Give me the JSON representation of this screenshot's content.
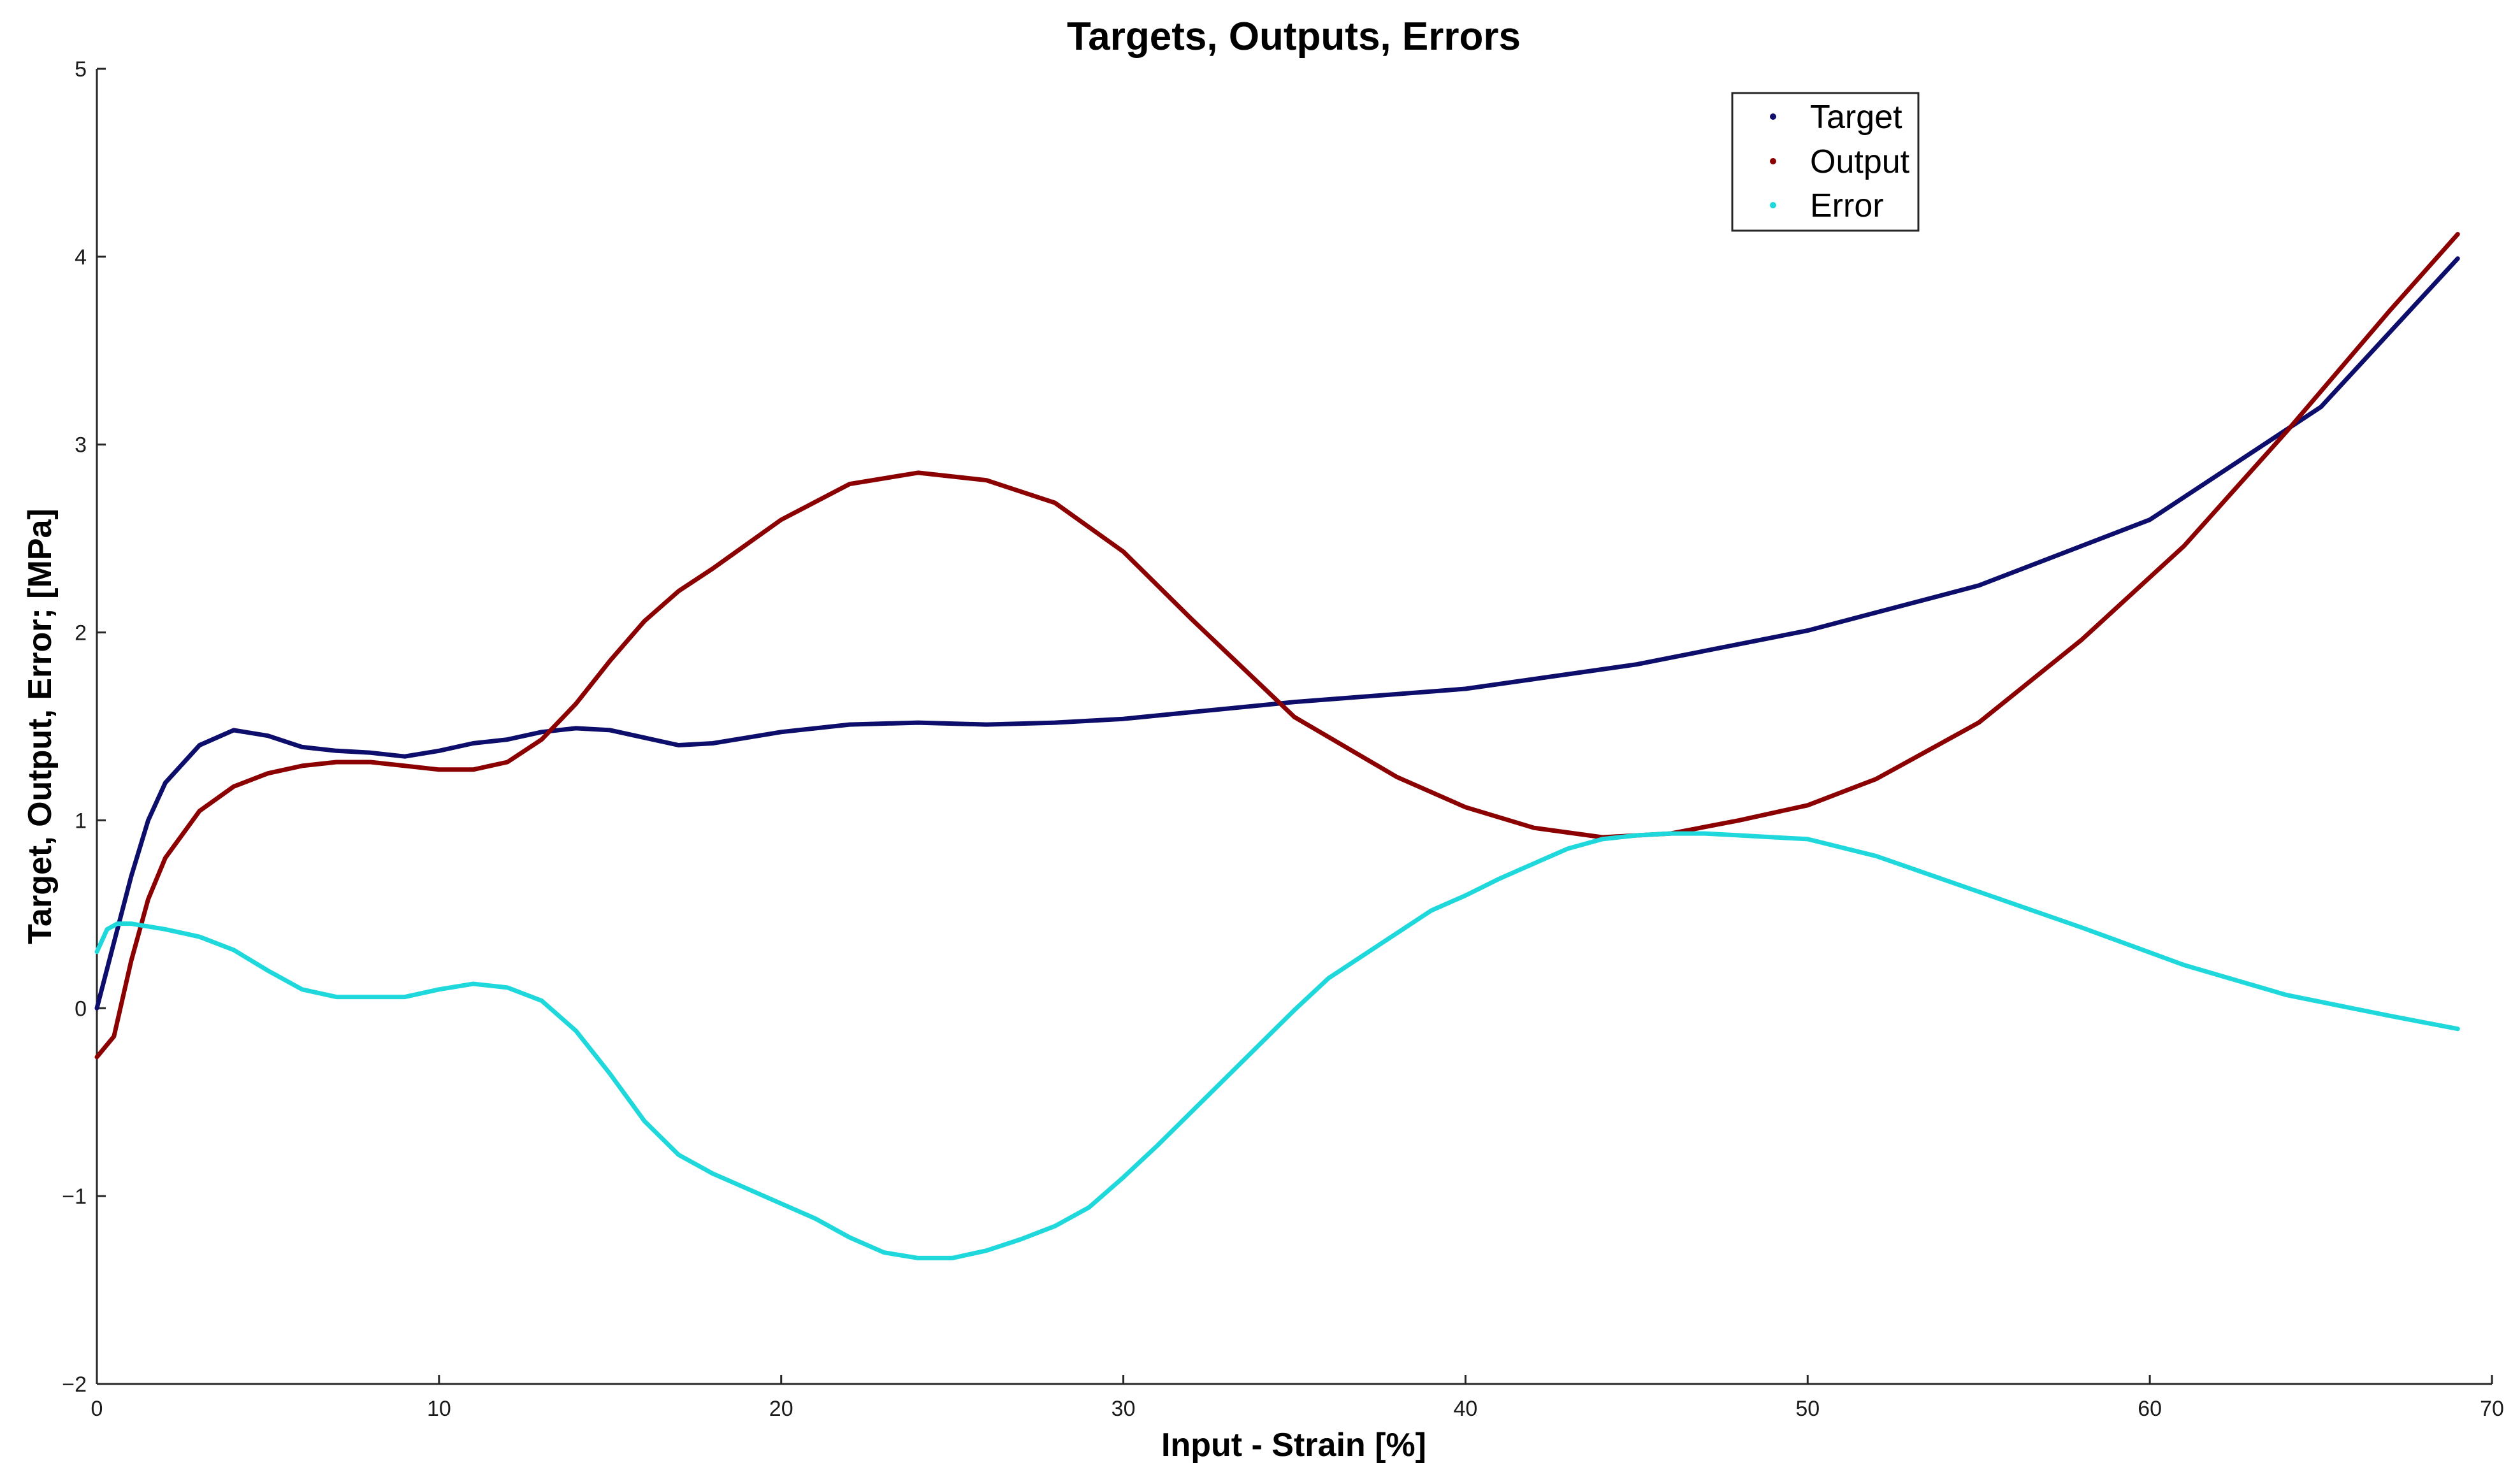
{
  "chart_data": {
    "type": "line",
    "title": "Targets, Outputs, Errors",
    "xlabel": "Input - Strain [%]",
    "ylabel": "Target, Output, Error; [MPa]",
    "xlim": [
      0,
      70
    ],
    "ylim": [
      -2,
      5
    ],
    "xticks": [
      0,
      10,
      20,
      30,
      40,
      50,
      60,
      70
    ],
    "xtick_labels": [
      "0",
      "10",
      "20",
      "30",
      "40",
      "50",
      "60",
      "70"
    ],
    "yticks": [
      -2,
      -1,
      0,
      1,
      2,
      3,
      4,
      5
    ],
    "ytick_labels": [
      "−2",
      "−1",
      "0",
      "1",
      "2",
      "3",
      "4",
      "5"
    ],
    "grid": false,
    "legend_position": "top-right",
    "series": [
      {
        "name": "Target",
        "color": "#0d0d6b",
        "x": [
          0,
          0.5,
          1,
          1.5,
          2,
          3,
          4,
          5,
          6,
          7,
          8,
          9,
          10,
          11,
          12,
          13,
          14,
          15,
          16,
          17,
          18,
          19,
          20,
          22,
          24,
          26,
          28,
          30,
          35,
          40,
          45,
          50,
          55,
          60,
          65,
          69
        ],
        "y": [
          0,
          0.35,
          0.7,
          1.0,
          1.2,
          1.4,
          1.48,
          1.45,
          1.39,
          1.37,
          1.36,
          1.34,
          1.37,
          1.41,
          1.43,
          1.47,
          1.49,
          1.48,
          1.44,
          1.4,
          1.41,
          1.44,
          1.47,
          1.51,
          1.52,
          1.51,
          1.52,
          1.54,
          1.63,
          1.7,
          1.83,
          2.01,
          2.25,
          2.6,
          3.2,
          3.99
        ]
      },
      {
        "name": "Output",
        "color": "#8b0000",
        "x": [
          0,
          0.5,
          1,
          1.5,
          2,
          3,
          4,
          5,
          6,
          7,
          8,
          9,
          10,
          11,
          12,
          13,
          14,
          15,
          16,
          17,
          18,
          20,
          22,
          24,
          26,
          28,
          30,
          32,
          35,
          38,
          40,
          42,
          44,
          46,
          48,
          50,
          52,
          55,
          58,
          61,
          64,
          67,
          69
        ],
        "y": [
          -0.26,
          -0.15,
          0.25,
          0.58,
          0.8,
          1.05,
          1.18,
          1.25,
          1.29,
          1.31,
          1.31,
          1.29,
          1.27,
          1.27,
          1.31,
          1.43,
          1.62,
          1.85,
          2.06,
          2.22,
          2.34,
          2.6,
          2.79,
          2.85,
          2.81,
          2.69,
          2.43,
          2.07,
          1.55,
          1.23,
          1.07,
          0.96,
          0.91,
          0.93,
          1.0,
          1.08,
          1.22,
          1.52,
          1.96,
          2.46,
          3.07,
          3.71,
          4.12
        ]
      },
      {
        "name": "Error",
        "color": "#1ed8dc",
        "x": [
          0,
          0.3,
          0.6,
          1,
          2,
          3,
          4,
          5,
          6,
          7,
          8,
          9,
          10,
          11,
          12,
          13,
          14,
          15,
          16,
          17,
          18,
          19,
          20,
          21,
          22,
          23,
          24,
          25,
          26,
          27,
          28,
          29,
          30,
          31,
          32,
          33,
          34,
          35,
          36,
          37,
          38,
          39,
          40,
          41,
          42,
          43,
          44,
          45,
          46,
          47,
          48,
          49,
          50,
          52,
          55,
          58,
          61,
          64,
          67,
          69
        ],
        "y": [
          0.3,
          0.42,
          0.45,
          0.45,
          0.42,
          0.38,
          0.31,
          0.2,
          0.1,
          0.06,
          0.06,
          0.06,
          0.1,
          0.13,
          0.11,
          0.04,
          -0.12,
          -0.35,
          -0.6,
          -0.78,
          -0.88,
          -0.96,
          -1.04,
          -1.12,
          -1.22,
          -1.3,
          -1.33,
          -1.33,
          -1.29,
          -1.23,
          -1.16,
          -1.06,
          -0.9,
          -0.73,
          -0.55,
          -0.37,
          -0.19,
          -0.01,
          0.16,
          0.28,
          0.4,
          0.52,
          0.6,
          0.69,
          0.77,
          0.85,
          0.9,
          0.92,
          0.93,
          0.93,
          0.92,
          0.91,
          0.9,
          0.81,
          0.62,
          0.43,
          0.23,
          0.07,
          -0.04,
          -0.11
        ]
      }
    ]
  }
}
